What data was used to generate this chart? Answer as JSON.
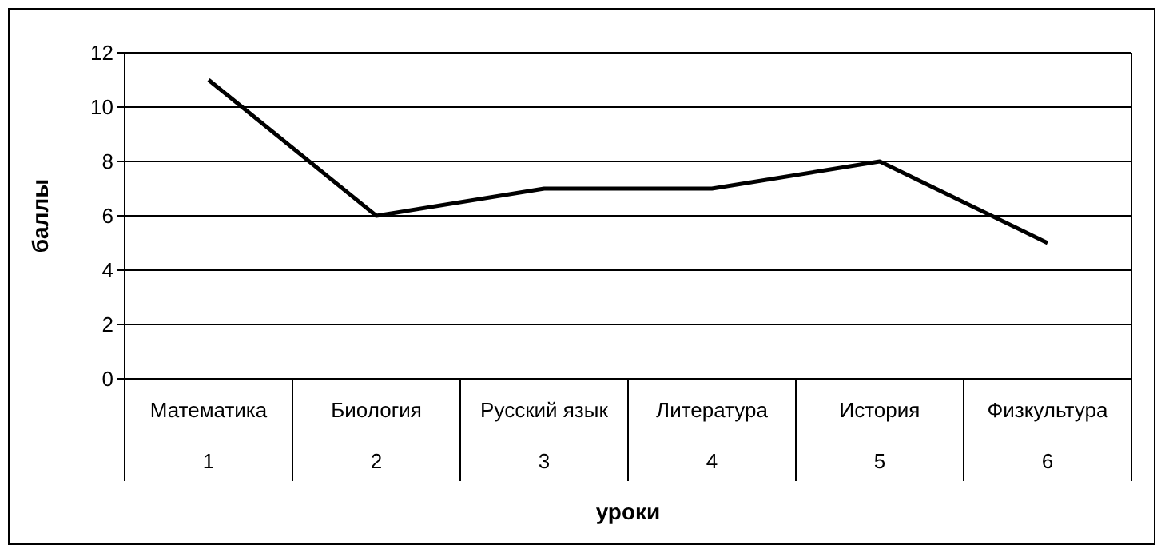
{
  "chart_data": {
    "type": "line",
    "xlabel": "уроки",
    "ylabel": "баллы",
    "categories": [
      "Математика\n1",
      "Биология\n2",
      "Русский язык\n3",
      "Литература\n4",
      "История\n5",
      "Физкультура\n6"
    ],
    "series": [
      {
        "color": "#000000",
        "values": [
          11,
          6,
          7,
          7,
          8,
          5
        ]
      }
    ],
    "ylim": [
      0,
      12
    ],
    "yticks": [
      0,
      2,
      4,
      6,
      8,
      10,
      12
    ],
    "grid": "y",
    "legend": false,
    "marker": "none",
    "line_style": "solid"
  }
}
